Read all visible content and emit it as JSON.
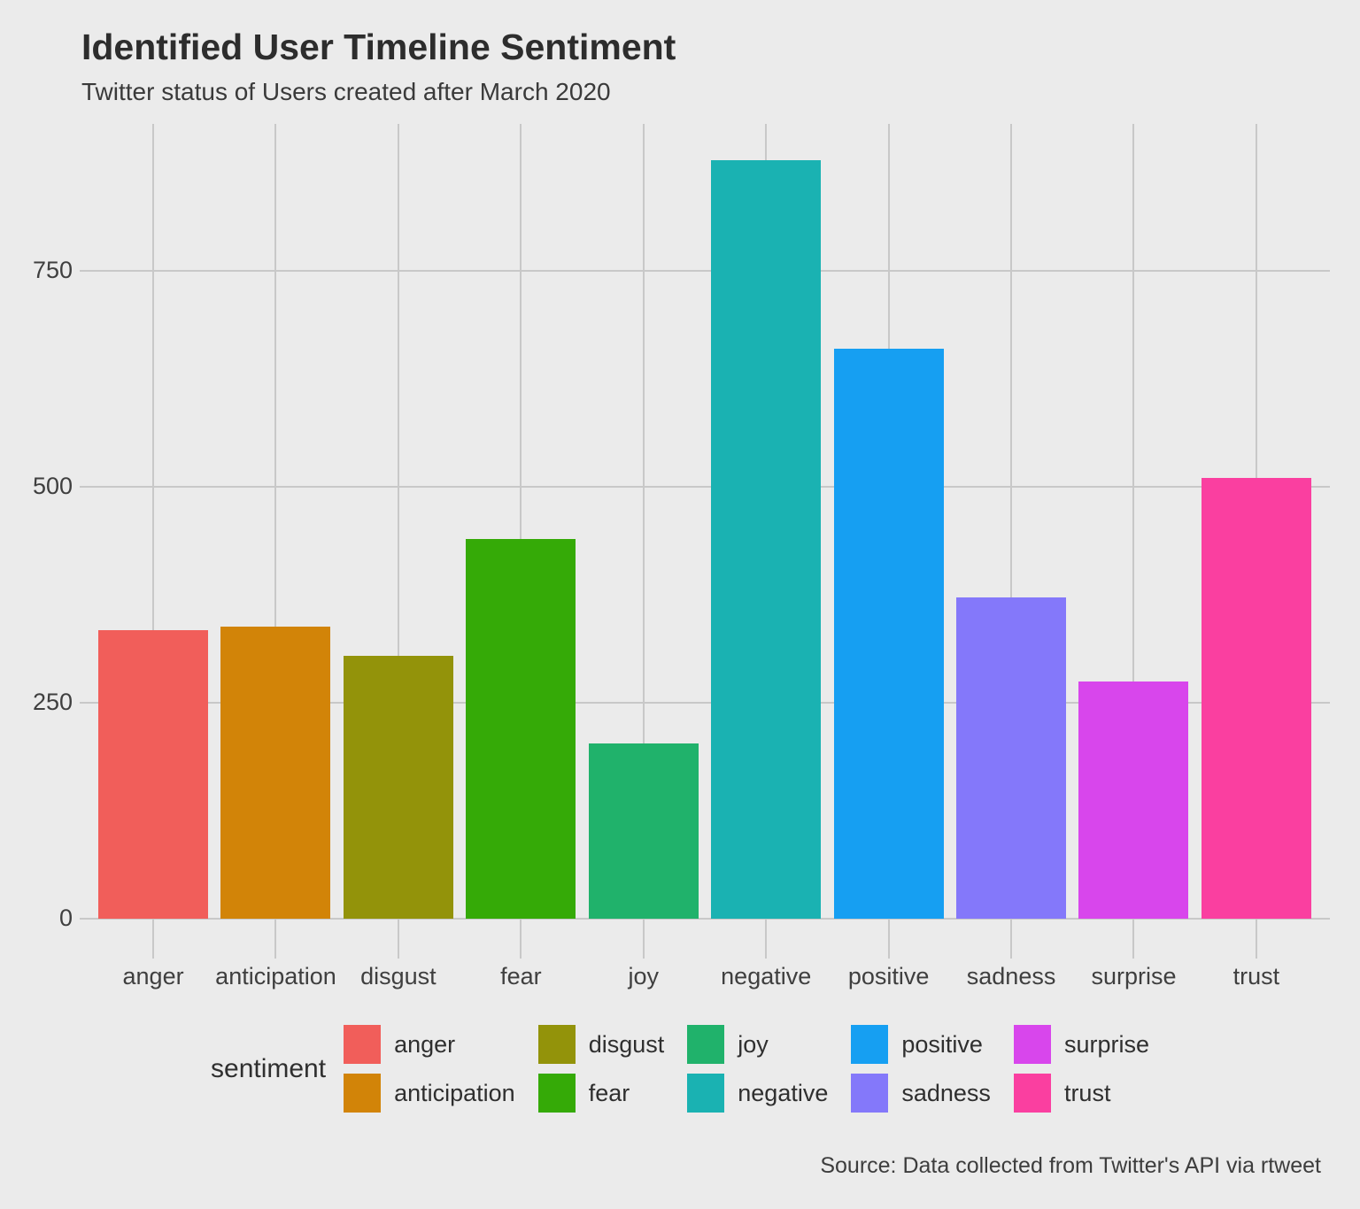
{
  "title": "Identified User Timeline Sentiment",
  "subtitle": "Twitter status of Users created after March 2020",
  "caption": "Source: Data collected from Twitter's API via rtweet",
  "legend": {
    "title": "sentiment",
    "entries": [
      {
        "label": "anger",
        "color": "#f15e5a"
      },
      {
        "label": "anticipation",
        "color": "#d28408"
      },
      {
        "label": "disgust",
        "color": "#93930a"
      },
      {
        "label": "fear",
        "color": "#35aa07"
      },
      {
        "label": "joy",
        "color": "#20b26b"
      },
      {
        "label": "negative",
        "color": "#1ab2b2"
      },
      {
        "label": "positive",
        "color": "#169ff2"
      },
      {
        "label": "sadness",
        "color": "#8478fa"
      },
      {
        "label": "surprise",
        "color": "#d846ec"
      },
      {
        "label": "trust",
        "color": "#fa3fa0"
      }
    ]
  },
  "colors": {
    "background": "#ebebeb",
    "grid": "#c8c8c8",
    "title_text": "#2d2d2d",
    "axis_text": "#3f3f3f"
  },
  "chart_data": {
    "type": "bar",
    "title": "Identified User Timeline Sentiment",
    "subtitle": "Twitter status of Users created after March 2020",
    "caption": "Source: Data collected from Twitter's API via rtweet",
    "xlabel": "",
    "ylabel": "",
    "categories": [
      "anger",
      "anticipation",
      "disgust",
      "fear",
      "joy",
      "negative",
      "positive",
      "sadness",
      "surprise",
      "trust"
    ],
    "values": [
      334,
      338,
      304,
      440,
      203,
      879,
      660,
      372,
      275,
      511
    ],
    "colors": [
      "#f15e5a",
      "#d28408",
      "#93930a",
      "#35aa07",
      "#20b26b",
      "#1ab2b2",
      "#169ff2",
      "#8478fa",
      "#d846ec",
      "#fa3fa0"
    ],
    "yticks": [
      0,
      250,
      500,
      750
    ],
    "ylim": [
      0,
      920
    ],
    "grid": true,
    "legend_title": "sentiment",
    "legend_position": "bottom"
  }
}
